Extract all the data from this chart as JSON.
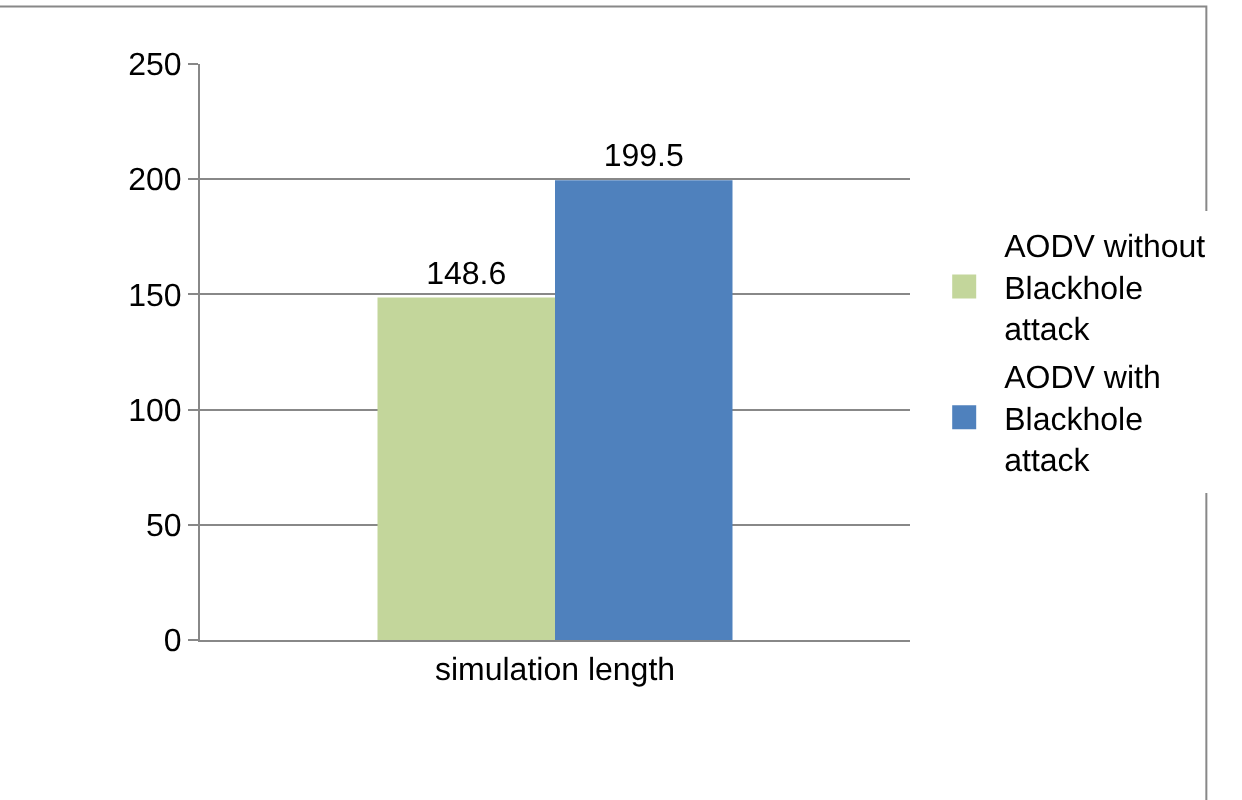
{
  "chart_data": {
    "type": "bar",
    "categories": [
      "simulation length"
    ],
    "series": [
      {
        "name": "AODV without Blackhole attack",
        "color": "#c3d69b",
        "values": [
          148.6
        ]
      },
      {
        "name": "AODV with Blackhole attack",
        "color": "#4f81bd",
        "values": [
          199.5
        ]
      }
    ],
    "ylim": [
      0,
      250
    ],
    "yticks": [
      0,
      50,
      100,
      150,
      200,
      250
    ],
    "grid": "y",
    "legend": "right",
    "data_labels": true
  }
}
